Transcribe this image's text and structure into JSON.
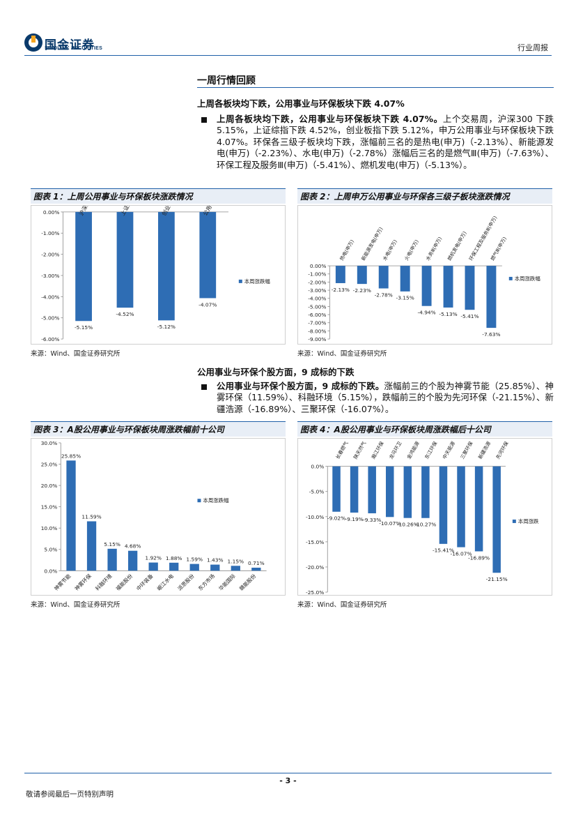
{
  "header": {
    "logo_cn": "国金证券",
    "logo_en": "SINOLINK SECURITIES",
    "report_type": "行业周报"
  },
  "section_title": "一周行情回顾",
  "subsection1": {
    "heading": "上周各板块均下跌，公用事业与环保板块下跌 4.07%",
    "lead": "上周各板块均下跌，公用事业与环保板块下跌 4.07%。",
    "body": "上个交易周，沪深300 下跌 5.15%，上证综指下跌 4.52%，创业板指下跌 5.12%，申万公用事业与环保板块下跌 4.07%。环保各三级子板块均下跌，涨幅前三名的是热电(申万)（-2.13%）、新能源发电(申万)（-2.23%）、水电(申万)（-2.78%）涨幅后三名的是燃气Ⅲ(申万)（-7.63%）、环保工程及服务Ⅲ(申万)（-5.41%）、燃机发电(申万)（-5.13%）。"
  },
  "subsection2": {
    "heading": "公用事业与环保个股方面，9 成标的下跌",
    "lead": "公用事业与环保个股方面，9 成标的下跌。",
    "body": "涨幅前三的个股为神雾节能（25.85%）、神雾环保（11.59%）、科融环境（5.15%），跌幅前三的个股为先河环保（-21.15%）、新疆浩源（-16.89%）、三聚环保（-16.07%）。"
  },
  "source_text": "来源：Wind、国金证券研究所",
  "footer": {
    "page_number": "- 3 -",
    "note": "敬请参阅最后一页特别声明"
  },
  "colors": {
    "bar": "#2e6db4",
    "accent": "#1e5fa8",
    "title_bg": "#e8eef6"
  },
  "chart_data": [
    {
      "id": "chart1",
      "title": "图表 1：上周公用事业与环保板块涨跌情况",
      "type": "bar",
      "categories": [
        "沪深300",
        "上证综指",
        "创业板指",
        "公用事业(申万)"
      ],
      "series": [
        {
          "name": "本周涨跌幅",
          "values": [
            -5.15,
            -4.52,
            -5.12,
            -4.07
          ]
        }
      ],
      "value_labels": [
        "-5.15%",
        "-4.52%",
        "-5.12%",
        "-4.07%"
      ],
      "ylim": [
        -6,
        0
      ],
      "yticks": [
        "0.00%",
        "-1.00%",
        "-2.00%",
        "-3.00%",
        "-4.00%",
        "-5.00%",
        "-6.00%"
      ],
      "legend_position": "right"
    },
    {
      "id": "chart2",
      "title": "图表 2：上周申万公用事业与环保各三级子板块涨跌情况",
      "type": "bar",
      "categories": [
        "热电(申万)",
        "新能源发电(申万)",
        "水电(申万)",
        "火电(申万)",
        "水务Ⅲ(申万)",
        "燃机发电(申万)",
        "环保工程及服务Ⅲ(申万)",
        "燃气Ⅲ(申万)"
      ],
      "series": [
        {
          "name": "本周涨跌幅",
          "values": [
            -2.13,
            -2.23,
            -2.78,
            -3.15,
            -4.94,
            -5.13,
            -5.41,
            -7.63
          ]
        }
      ],
      "value_labels": [
        "-2.13%",
        "-2.23%",
        "-2.78%",
        "-3.15%",
        "-4.94%",
        "-5.13%",
        "-5.41%",
        "-7.63%"
      ],
      "ylim": [
        -9,
        0
      ],
      "yticks": [
        "0.00%",
        "-1.00%",
        "-2.00%",
        "-3.00%",
        "-4.00%",
        "-5.00%",
        "-6.00%",
        "-7.00%",
        "-8.00%",
        "-9.00%"
      ],
      "legend_position": "right"
    },
    {
      "id": "chart3",
      "title": "图表 3：A股公用事业与环保板块周涨跌幅前十公司",
      "type": "bar",
      "categories": [
        "神雾节能",
        "神雾环保",
        "科融环境",
        "福能股份",
        "中环装备",
        "岷江水电",
        "派思股份",
        "东方市场",
        "华能国际",
        "赣能股份"
      ],
      "series": [
        {
          "name": "本周涨跌幅",
          "values": [
            25.85,
            11.59,
            5.15,
            4.68,
            1.92,
            1.88,
            1.59,
            1.43,
            1.15,
            0.71
          ]
        }
      ],
      "value_labels": [
        "25.85%",
        "11.59%",
        "5.15%",
        "4.68%",
        "1.92%",
        "1.88%",
        "1.59%",
        "1.43%",
        "1.15%",
        "0.71%"
      ],
      "ylim": [
        0,
        30
      ],
      "yticks": [
        "30.0%",
        "25.0%",
        "20.0%",
        "15.0%",
        "10.0%",
        "5.0%",
        "0.0%"
      ],
      "legend_position": "right"
    },
    {
      "id": "chart4",
      "title": "图表 4：A股公用事业与环保板块周涨跌幅后十公司",
      "type": "bar",
      "categories": [
        "长春燃气",
        "陕天然气",
        "瀚江环保",
        "龙马环卫",
        "金鸿能源",
        "东江环保",
        "中天能源",
        "三聚环保",
        "新疆浩源",
        "先河环保"
      ],
      "series": [
        {
          "name": "本周涨跌",
          "values": [
            -9.02,
            -9.19,
            -9.33,
            -10.07,
            -10.26,
            -10.27,
            -15.41,
            -16.07,
            -16.89,
            -21.15
          ]
        }
      ],
      "value_labels": [
        "-9.02%",
        "-9.19%",
        "-9.33%",
        "-10.07%",
        "-10.26%",
        "-10.27%",
        "-15.41%",
        "-16.07%",
        "-16.89%",
        "-21.15%"
      ],
      "ylim": [
        -25,
        0
      ],
      "yticks": [
        "0.0%",
        "-5.0%",
        "-10.0%",
        "-15.0%",
        "-20.0%",
        "-25.0%"
      ],
      "legend_position": "right"
    }
  ]
}
